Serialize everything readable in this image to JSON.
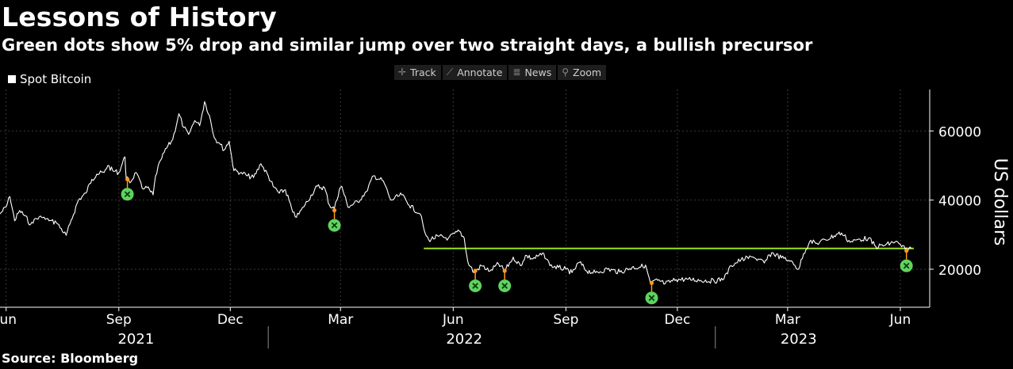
{
  "header": {
    "title": "Lessons of History",
    "subtitle": "Green dots show 5% drop and similar jump over two straight days, a bullish precursor"
  },
  "legend": {
    "label": "Spot Bitcoin",
    "color": "#ffffff"
  },
  "toolbar": [
    {
      "label": "Track",
      "icon": "crosshair-icon",
      "glyph": "✛"
    },
    {
      "label": "Annotate",
      "icon": "pencil-icon",
      "glyph": "⟋"
    },
    {
      "label": "News",
      "icon": "news-icon",
      "glyph": "≣"
    },
    {
      "label": "Zoom",
      "icon": "magnifier-icon",
      "glyph": "⚲"
    }
  ],
  "source": "Source: Bloomberg",
  "colors": {
    "background": "#000000",
    "line": "#ffffff",
    "grid": "#3a3a3a",
    "marker_dot": "#5fd35f",
    "marker_pin": "#ff9a1a",
    "support_line": "#9be023"
  },
  "chart_data": {
    "type": "line",
    "ylabel": "US dollars",
    "y_axis_side": "right",
    "ylim": [
      9000,
      72000
    ],
    "yticks": [
      20000,
      40000,
      60000
    ],
    "ytick_labels": [
      "20000",
      "40000",
      "60000"
    ],
    "xlim": [
      "2021-05-27",
      "2023-06-25"
    ],
    "xticks": [
      {
        "date": "2021-06-01",
        "label": "Jun"
      },
      {
        "date": "2021-09-01",
        "label": "Sep"
      },
      {
        "date": "2021-12-01",
        "label": "Dec"
      },
      {
        "date": "2022-03-01",
        "label": "Mar"
      },
      {
        "date": "2022-06-01",
        "label": "Jun"
      },
      {
        "date": "2022-09-01",
        "label": "Sep"
      },
      {
        "date": "2022-12-01",
        "label": "Dec"
      },
      {
        "date": "2023-03-01",
        "label": "Mar"
      },
      {
        "date": "2023-06-01",
        "label": "Jun"
      }
    ],
    "year_labels": [
      {
        "date": "2021-09-15",
        "label": "2021"
      },
      {
        "date": "2022-06-10",
        "label": "2022"
      },
      {
        "date": "2023-03-10",
        "label": "2023"
      }
    ],
    "year_separators": [
      "2022-01-01",
      "2023-01-01"
    ],
    "grid": true,
    "series": [
      {
        "name": "Spot Bitcoin",
        "points": [
          [
            "2021-05-27",
            36000
          ],
          [
            "2021-06-01",
            38000
          ],
          [
            "2021-06-04",
            41000
          ],
          [
            "2021-06-08",
            34000
          ],
          [
            "2021-06-12",
            37000
          ],
          [
            "2021-06-16",
            35500
          ],
          [
            "2021-06-21",
            33000
          ],
          [
            "2021-06-24",
            34500
          ],
          [
            "2021-06-30",
            35000
          ],
          [
            "2021-07-06",
            34000
          ],
          [
            "2021-07-12",
            33500
          ],
          [
            "2021-07-20",
            29800
          ],
          [
            "2021-07-23",
            33000
          ],
          [
            "2021-07-30",
            40000
          ],
          [
            "2021-08-05",
            42000
          ],
          [
            "2021-08-10",
            46000
          ],
          [
            "2021-08-14",
            47500
          ],
          [
            "2021-08-20",
            48000
          ],
          [
            "2021-08-23",
            50000
          ],
          [
            "2021-08-27",
            48500
          ],
          [
            "2021-09-01",
            48000
          ],
          [
            "2021-09-06",
            52500
          ],
          [
            "2021-09-07",
            46500
          ],
          [
            "2021-09-10",
            45000
          ],
          [
            "2021-09-15",
            48000
          ],
          [
            "2021-09-20",
            43500
          ],
          [
            "2021-09-23",
            44000
          ],
          [
            "2021-09-29",
            41500
          ],
          [
            "2021-10-01",
            47000
          ],
          [
            "2021-10-05",
            51500
          ],
          [
            "2021-10-10",
            55000
          ],
          [
            "2021-10-15",
            57500
          ],
          [
            "2021-10-20",
            65000
          ],
          [
            "2021-10-24",
            61000
          ],
          [
            "2021-10-28",
            59000
          ],
          [
            "2021-11-02",
            63000
          ],
          [
            "2021-11-06",
            61500
          ],
          [
            "2021-11-10",
            68500
          ],
          [
            "2021-11-14",
            64500
          ],
          [
            "2021-11-18",
            58000
          ],
          [
            "2021-11-22",
            56500
          ],
          [
            "2021-11-26",
            54500
          ],
          [
            "2021-11-30",
            57000
          ],
          [
            "2021-12-04",
            48500
          ],
          [
            "2021-12-10",
            48000
          ],
          [
            "2021-12-15",
            47000
          ],
          [
            "2021-12-20",
            46500
          ],
          [
            "2021-12-26",
            50500
          ],
          [
            "2022-01-01",
            47000
          ],
          [
            "2022-01-05",
            44000
          ],
          [
            "2022-01-10",
            42000
          ],
          [
            "2022-01-15",
            43000
          ],
          [
            "2022-01-21",
            36500
          ],
          [
            "2022-01-24",
            35000
          ],
          [
            "2022-01-30",
            38000
          ],
          [
            "2022-02-05",
            41500
          ],
          [
            "2022-02-10",
            44000
          ],
          [
            "2022-02-16",
            43500
          ],
          [
            "2022-02-20",
            38500
          ],
          [
            "2022-02-24",
            37500
          ],
          [
            "2022-02-28",
            43000
          ],
          [
            "2022-03-02",
            44000
          ],
          [
            "2022-03-07",
            38000
          ],
          [
            "2022-03-15",
            39500
          ],
          [
            "2022-03-22",
            42500
          ],
          [
            "2022-03-28",
            47000
          ],
          [
            "2022-04-05",
            45500
          ],
          [
            "2022-04-11",
            40000
          ],
          [
            "2022-04-20",
            41500
          ],
          [
            "2022-04-26",
            38500
          ],
          [
            "2022-05-05",
            36000
          ],
          [
            "2022-05-09",
            30500
          ],
          [
            "2022-05-12",
            28500
          ],
          [
            "2022-05-20",
            29500
          ],
          [
            "2022-05-28",
            29000
          ],
          [
            "2022-06-06",
            31000
          ],
          [
            "2022-06-10",
            29000
          ],
          [
            "2022-06-13",
            22000
          ],
          [
            "2022-06-18",
            19000
          ],
          [
            "2022-06-24",
            21000
          ],
          [
            "2022-07-01",
            19500
          ],
          [
            "2022-07-08",
            21500
          ],
          [
            "2022-07-13",
            19500
          ],
          [
            "2022-07-20",
            23500
          ],
          [
            "2022-07-26",
            21000
          ],
          [
            "2022-07-30",
            24000
          ],
          [
            "2022-08-05",
            23000
          ],
          [
            "2022-08-14",
            24500
          ],
          [
            "2022-08-19",
            21000
          ],
          [
            "2022-08-26",
            20500
          ],
          [
            "2022-09-01",
            20000
          ],
          [
            "2022-09-06",
            19000
          ],
          [
            "2022-09-12",
            22000
          ],
          [
            "2022-09-18",
            19500
          ],
          [
            "2022-09-25",
            19000
          ],
          [
            "2022-10-05",
            20000
          ],
          [
            "2022-10-15",
            19200
          ],
          [
            "2022-10-25",
            20500
          ],
          [
            "2022-10-31",
            20600
          ],
          [
            "2022-11-05",
            21200
          ],
          [
            "2022-11-09",
            16000
          ],
          [
            "2022-11-15",
            16800
          ],
          [
            "2022-11-21",
            15800
          ],
          [
            "2022-11-30",
            17000
          ],
          [
            "2022-12-10",
            17100
          ],
          [
            "2022-12-20",
            16800
          ],
          [
            "2022-12-31",
            16600
          ],
          [
            "2023-01-08",
            17200
          ],
          [
            "2023-01-14",
            21000
          ],
          [
            "2023-01-22",
            22800
          ],
          [
            "2023-02-01",
            23500
          ],
          [
            "2023-02-10",
            21800
          ],
          [
            "2023-02-16",
            24800
          ],
          [
            "2023-02-24",
            23300
          ],
          [
            "2023-03-03",
            22300
          ],
          [
            "2023-03-10",
            20000
          ],
          [
            "2023-03-14",
            24500
          ],
          [
            "2023-03-19",
            28000
          ],
          [
            "2023-03-25",
            27500
          ],
          [
            "2023-04-01",
            28500
          ],
          [
            "2023-04-11",
            30200
          ],
          [
            "2023-04-14",
            30500
          ],
          [
            "2023-04-21",
            27800
          ],
          [
            "2023-04-26",
            28500
          ],
          [
            "2023-05-06",
            29000
          ],
          [
            "2023-05-12",
            26500
          ],
          [
            "2023-05-20",
            27000
          ],
          [
            "2023-05-28",
            28000
          ],
          [
            "2023-06-05",
            25800
          ],
          [
            "2023-06-10",
            26000
          ]
        ]
      }
    ],
    "markers": [
      {
        "date": "2021-09-08",
        "value": 46500
      },
      {
        "date": "2022-02-24",
        "value": 37500
      },
      {
        "date": "2022-06-19",
        "value": 20000
      },
      {
        "date": "2022-07-13",
        "value": 20000
      },
      {
        "date": "2022-11-10",
        "value": 16500
      },
      {
        "date": "2023-06-06",
        "value": 25800
      }
    ],
    "support_line": {
      "start": "2022-05-08",
      "end": "2023-06-12",
      "value": 26000
    }
  }
}
